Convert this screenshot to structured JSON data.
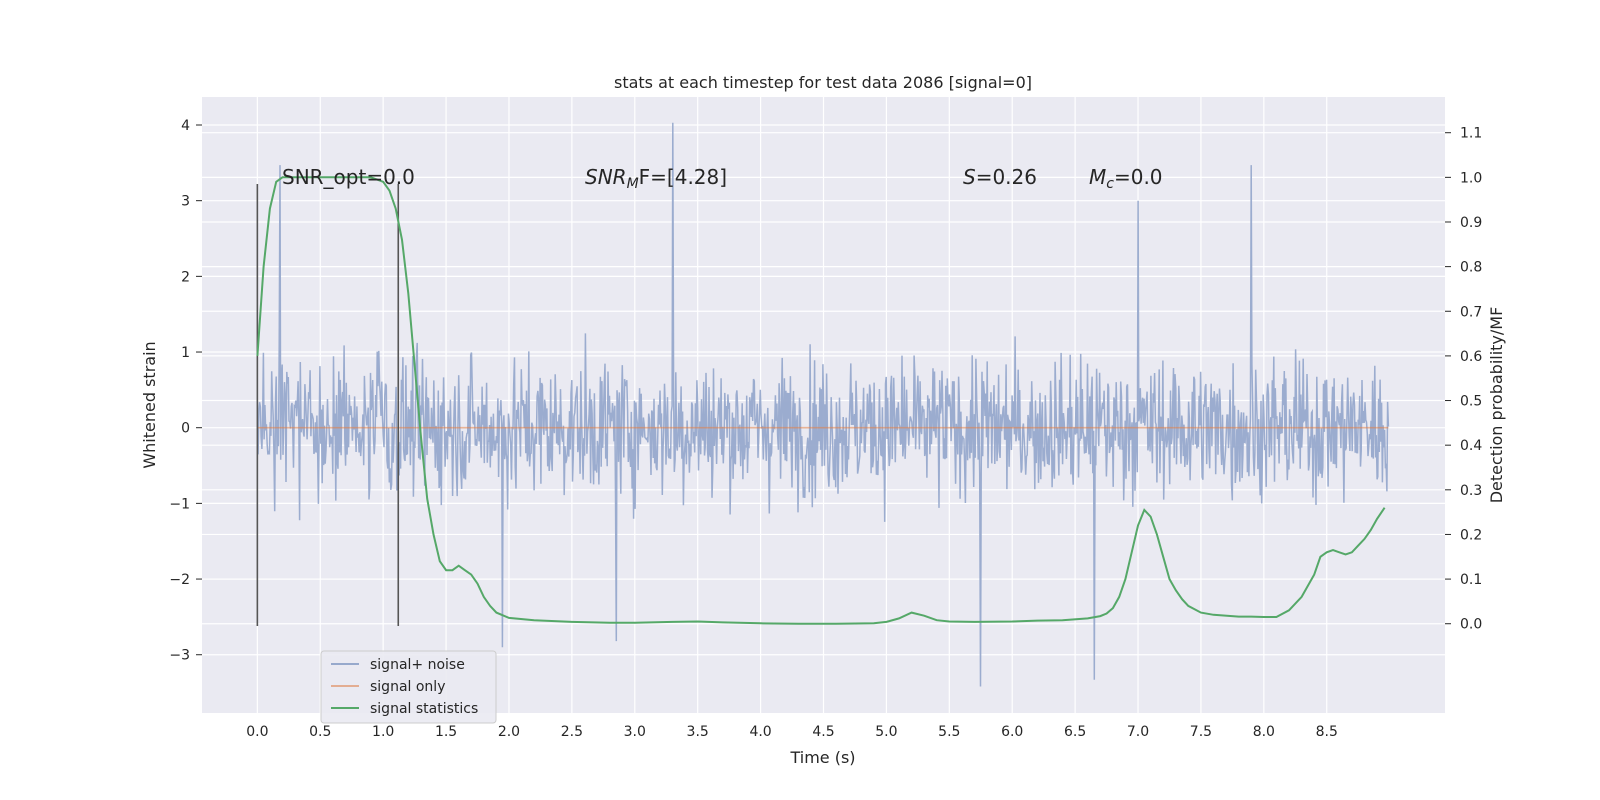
{
  "chart_data": {
    "type": "line",
    "title": "stats at each timestep for test data 2086 [signal=0]",
    "xlabel": "Time (s)",
    "ylabel": "Whitened strain",
    "y2label": "Detection probability/MF",
    "xlim": [
      -0.44,
      9.44
    ],
    "ylim": [
      -3.77,
      4.37
    ],
    "y2lim": [
      -0.2,
      1.18
    ],
    "x_ticks": [
      "0.0",
      "0.5",
      "1.0",
      "1.5",
      "2.0",
      "2.5",
      "3.0",
      "3.5",
      "4.0",
      "4.5",
      "5.0",
      "5.5",
      "6.0",
      "6.5",
      "7.0",
      "7.5",
      "8.0",
      "8.5"
    ],
    "y_ticks": [
      "−3",
      "−2",
      "−1",
      "0",
      "1",
      "2",
      "3",
      "4"
    ],
    "y2_ticks": [
      "0.0",
      "0.1",
      "0.2",
      "0.3",
      "0.4",
      "0.5",
      "0.6",
      "0.7",
      "0.8",
      "0.9",
      "1.0",
      "1.1"
    ],
    "grid": true,
    "legend_position": "bottom-left",
    "annotations": {
      "snr_opt": "SNR_opt=0.0",
      "snr_mf_base": "SNR",
      "snr_mf_sub": "M",
      "snr_mf_rest": "F=[4.28]",
      "s_label": "S",
      "s_value": "=0.26",
      "mc_label": "M",
      "mc_sub": "c",
      "mc_value": "=0.0"
    },
    "vertical_markers": [
      {
        "x": 0.0,
        "ymin": -2.62,
        "ymax": 3.22
      },
      {
        "x": 1.12,
        "ymin": -2.62,
        "ymax": 3.22
      }
    ],
    "series": [
      {
        "name": "signal+ noise",
        "color": "#97a9cc",
        "axis": "left",
        "description": "noise trace, t = 0 to 8.99 s",
        "x_range": [
          0.0,
          8.99
        ],
        "band": [
          -1.2,
          1.3
        ],
        "extremes": [
          {
            "x": 3.3,
            "y": 4.03
          },
          {
            "x": 5.75,
            "y": -3.42
          },
          {
            "x": 6.65,
            "y": -3.33
          },
          {
            "x": 7.9,
            "y": 3.47
          },
          {
            "x": 0.18,
            "y": 3.47
          },
          {
            "x": 2.85,
            "y": -2.82
          },
          {
            "x": 7.0,
            "y": 3.0
          },
          {
            "x": 1.95,
            "y": -2.9
          }
        ]
      },
      {
        "name": "signal only",
        "color": "#dd8452",
        "axis": "left",
        "x": [
          0.0,
          8.99
        ],
        "y": [
          0.0,
          0.0
        ]
      },
      {
        "name": "signal statistics",
        "color": "#55a868",
        "axis": "right",
        "x": [
          0.0,
          0.05,
          0.1,
          0.15,
          0.2,
          0.3,
          0.5,
          0.7,
          0.9,
          1.0,
          1.05,
          1.1,
          1.15,
          1.2,
          1.25,
          1.3,
          1.35,
          1.4,
          1.45,
          1.5,
          1.55,
          1.6,
          1.65,
          1.7,
          1.75,
          1.8,
          1.85,
          1.9,
          2.0,
          2.2,
          2.5,
          2.8,
          3.0,
          3.3,
          3.5,
          3.7,
          4.0,
          4.3,
          4.6,
          4.9,
          5.0,
          5.1,
          5.2,
          5.3,
          5.4,
          5.5,
          5.7,
          6.0,
          6.2,
          6.4,
          6.6,
          6.7,
          6.75,
          6.8,
          6.85,
          6.9,
          6.95,
          7.0,
          7.05,
          7.1,
          7.15,
          7.2,
          7.25,
          7.3,
          7.35,
          7.4,
          7.5,
          7.6,
          7.8,
          7.9,
          8.0,
          8.1,
          8.2,
          8.3,
          8.4,
          8.45,
          8.5,
          8.55,
          8.6,
          8.65,
          8.7,
          8.75,
          8.8,
          8.85,
          8.9,
          8.96
        ],
        "y": [
          0.6,
          0.8,
          0.93,
          0.99,
          1.0,
          1.0,
          1.0,
          1.0,
          1.0,
          0.99,
          0.97,
          0.93,
          0.86,
          0.74,
          0.58,
          0.42,
          0.28,
          0.2,
          0.14,
          0.12,
          0.12,
          0.13,
          0.12,
          0.11,
          0.09,
          0.06,
          0.04,
          0.025,
          0.013,
          0.008,
          0.004,
          0.002,
          0.002,
          0.004,
          0.005,
          0.003,
          0.001,
          0.0,
          0.0,
          0.001,
          0.004,
          0.012,
          0.025,
          0.018,
          0.008,
          0.005,
          0.004,
          0.005,
          0.007,
          0.008,
          0.012,
          0.017,
          0.023,
          0.035,
          0.06,
          0.1,
          0.16,
          0.22,
          0.255,
          0.24,
          0.2,
          0.15,
          0.1,
          0.075,
          0.055,
          0.04,
          0.025,
          0.02,
          0.016,
          0.016,
          0.015,
          0.015,
          0.03,
          0.06,
          0.11,
          0.15,
          0.16,
          0.165,
          0.16,
          0.155,
          0.16,
          0.175,
          0.19,
          0.21,
          0.235,
          0.26
        ]
      }
    ]
  }
}
